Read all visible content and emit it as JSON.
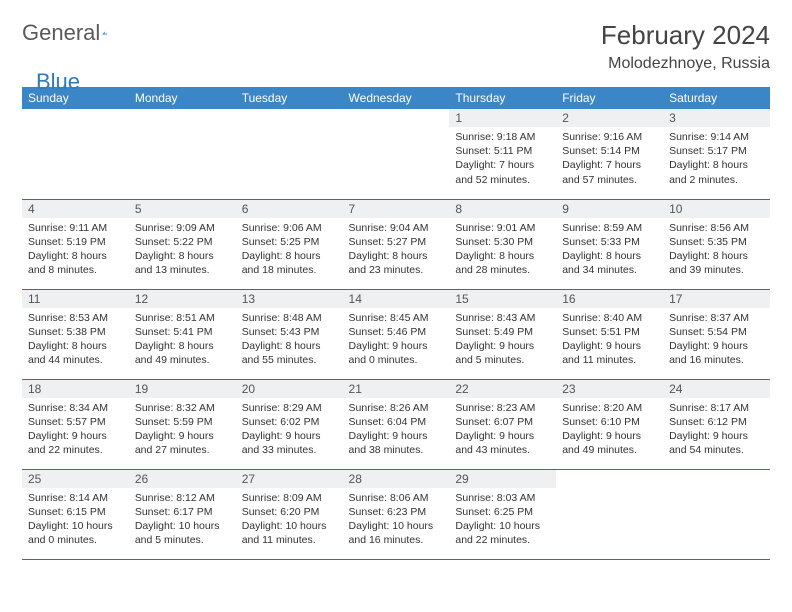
{
  "logo": {
    "text1": "General",
    "text2": "Blue"
  },
  "title": "February 2024",
  "location": "Molodezhnoye, Russia",
  "colors": {
    "header_bg": "#3b86c6",
    "header_text": "#ffffff",
    "daynum_bg": "#eef0f1",
    "border": "#2f6fa8",
    "logo_gray": "#5a5a5a",
    "logo_blue": "#2f7bbf"
  },
  "day_labels": [
    "Sunday",
    "Monday",
    "Tuesday",
    "Wednesday",
    "Thursday",
    "Friday",
    "Saturday"
  ],
  "weeks": [
    [
      {
        "n": "",
        "sr": "",
        "ss": "",
        "dl": ""
      },
      {
        "n": "",
        "sr": "",
        "ss": "",
        "dl": ""
      },
      {
        "n": "",
        "sr": "",
        "ss": "",
        "dl": ""
      },
      {
        "n": "",
        "sr": "",
        "ss": "",
        "dl": ""
      },
      {
        "n": "1",
        "sr": "9:18 AM",
        "ss": "5:11 PM",
        "dl": "7 hours and 52 minutes."
      },
      {
        "n": "2",
        "sr": "9:16 AM",
        "ss": "5:14 PM",
        "dl": "7 hours and 57 minutes."
      },
      {
        "n": "3",
        "sr": "9:14 AM",
        "ss": "5:17 PM",
        "dl": "8 hours and 2 minutes."
      }
    ],
    [
      {
        "n": "4",
        "sr": "9:11 AM",
        "ss": "5:19 PM",
        "dl": "8 hours and 8 minutes."
      },
      {
        "n": "5",
        "sr": "9:09 AM",
        "ss": "5:22 PM",
        "dl": "8 hours and 13 minutes."
      },
      {
        "n": "6",
        "sr": "9:06 AM",
        "ss": "5:25 PM",
        "dl": "8 hours and 18 minutes."
      },
      {
        "n": "7",
        "sr": "9:04 AM",
        "ss": "5:27 PM",
        "dl": "8 hours and 23 minutes."
      },
      {
        "n": "8",
        "sr": "9:01 AM",
        "ss": "5:30 PM",
        "dl": "8 hours and 28 minutes."
      },
      {
        "n": "9",
        "sr": "8:59 AM",
        "ss": "5:33 PM",
        "dl": "8 hours and 34 minutes."
      },
      {
        "n": "10",
        "sr": "8:56 AM",
        "ss": "5:35 PM",
        "dl": "8 hours and 39 minutes."
      }
    ],
    [
      {
        "n": "11",
        "sr": "8:53 AM",
        "ss": "5:38 PM",
        "dl": "8 hours and 44 minutes."
      },
      {
        "n": "12",
        "sr": "8:51 AM",
        "ss": "5:41 PM",
        "dl": "8 hours and 49 minutes."
      },
      {
        "n": "13",
        "sr": "8:48 AM",
        "ss": "5:43 PM",
        "dl": "8 hours and 55 minutes."
      },
      {
        "n": "14",
        "sr": "8:45 AM",
        "ss": "5:46 PM",
        "dl": "9 hours and 0 minutes."
      },
      {
        "n": "15",
        "sr": "8:43 AM",
        "ss": "5:49 PM",
        "dl": "9 hours and 5 minutes."
      },
      {
        "n": "16",
        "sr": "8:40 AM",
        "ss": "5:51 PM",
        "dl": "9 hours and 11 minutes."
      },
      {
        "n": "17",
        "sr": "8:37 AM",
        "ss": "5:54 PM",
        "dl": "9 hours and 16 minutes."
      }
    ],
    [
      {
        "n": "18",
        "sr": "8:34 AM",
        "ss": "5:57 PM",
        "dl": "9 hours and 22 minutes."
      },
      {
        "n": "19",
        "sr": "8:32 AM",
        "ss": "5:59 PM",
        "dl": "9 hours and 27 minutes."
      },
      {
        "n": "20",
        "sr": "8:29 AM",
        "ss": "6:02 PM",
        "dl": "9 hours and 33 minutes."
      },
      {
        "n": "21",
        "sr": "8:26 AM",
        "ss": "6:04 PM",
        "dl": "9 hours and 38 minutes."
      },
      {
        "n": "22",
        "sr": "8:23 AM",
        "ss": "6:07 PM",
        "dl": "9 hours and 43 minutes."
      },
      {
        "n": "23",
        "sr": "8:20 AM",
        "ss": "6:10 PM",
        "dl": "9 hours and 49 minutes."
      },
      {
        "n": "24",
        "sr": "8:17 AM",
        "ss": "6:12 PM",
        "dl": "9 hours and 54 minutes."
      }
    ],
    [
      {
        "n": "25",
        "sr": "8:14 AM",
        "ss": "6:15 PM",
        "dl": "10 hours and 0 minutes."
      },
      {
        "n": "26",
        "sr": "8:12 AM",
        "ss": "6:17 PM",
        "dl": "10 hours and 5 minutes."
      },
      {
        "n": "27",
        "sr": "8:09 AM",
        "ss": "6:20 PM",
        "dl": "10 hours and 11 minutes."
      },
      {
        "n": "28",
        "sr": "8:06 AM",
        "ss": "6:23 PM",
        "dl": "10 hours and 16 minutes."
      },
      {
        "n": "29",
        "sr": "8:03 AM",
        "ss": "6:25 PM",
        "dl": "10 hours and 22 minutes."
      },
      {
        "n": "",
        "sr": "",
        "ss": "",
        "dl": ""
      },
      {
        "n": "",
        "sr": "",
        "ss": "",
        "dl": ""
      }
    ]
  ],
  "labels": {
    "sunrise": "Sunrise: ",
    "sunset": "Sunset: ",
    "daylight": "Daylight: "
  }
}
